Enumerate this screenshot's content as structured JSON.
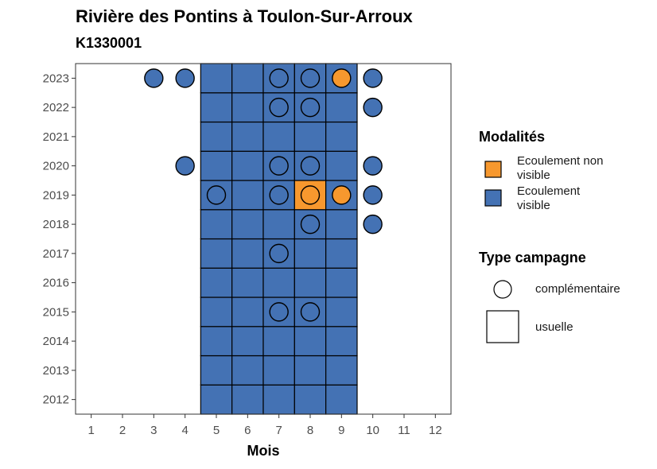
{
  "chart_data": {
    "type": "heatmap",
    "title": "Rivière des Pontins à Toulon-Sur-Arroux",
    "subtitle": "K1330001",
    "xlabel": "Mois",
    "ylabel": "",
    "x_ticks": [
      1,
      2,
      3,
      4,
      5,
      6,
      7,
      8,
      9,
      10,
      11,
      12
    ],
    "y_ticks": [
      2012,
      2013,
      2014,
      2015,
      2016,
      2017,
      2018,
      2019,
      2020,
      2021,
      2022,
      2023
    ],
    "xlim": [
      0.5,
      12.5
    ],
    "ylim": [
      2011.5,
      2023.5
    ],
    "grid": false,
    "legend_placement": "right",
    "colors": {
      "visible": "#4472B4",
      "non_visible": "#F7982E"
    },
    "legend": {
      "modalites_title": "Modalités",
      "modalites": [
        {
          "key": "non_visible",
          "label": "Ecoulement non visible"
        },
        {
          "key": "visible",
          "label": "Ecoulement visible"
        }
      ],
      "campagne_title": "Type campagne",
      "campagnes": [
        {
          "key": "complementaire",
          "label": "complémentaire"
        },
        {
          "key": "usuelle",
          "label": "usuelle"
        }
      ]
    },
    "usuelle": [
      [
        5,
        2012,
        "visible"
      ],
      [
        6,
        2012,
        "visible"
      ],
      [
        7,
        2012,
        "visible"
      ],
      [
        8,
        2012,
        "visible"
      ],
      [
        9,
        2012,
        "visible"
      ],
      [
        5,
        2013,
        "visible"
      ],
      [
        6,
        2013,
        "visible"
      ],
      [
        7,
        2013,
        "visible"
      ],
      [
        8,
        2013,
        "visible"
      ],
      [
        9,
        2013,
        "visible"
      ],
      [
        5,
        2014,
        "visible"
      ],
      [
        6,
        2014,
        "visible"
      ],
      [
        7,
        2014,
        "visible"
      ],
      [
        8,
        2014,
        "visible"
      ],
      [
        9,
        2014,
        "visible"
      ],
      [
        5,
        2015,
        "visible"
      ],
      [
        6,
        2015,
        "visible"
      ],
      [
        7,
        2015,
        "visible"
      ],
      [
        8,
        2015,
        "visible"
      ],
      [
        9,
        2015,
        "visible"
      ],
      [
        5,
        2016,
        "visible"
      ],
      [
        6,
        2016,
        "visible"
      ],
      [
        7,
        2016,
        "visible"
      ],
      [
        8,
        2016,
        "visible"
      ],
      [
        9,
        2016,
        "visible"
      ],
      [
        5,
        2017,
        "visible"
      ],
      [
        6,
        2017,
        "visible"
      ],
      [
        7,
        2017,
        "visible"
      ],
      [
        8,
        2017,
        "visible"
      ],
      [
        9,
        2017,
        "visible"
      ],
      [
        5,
        2018,
        "visible"
      ],
      [
        6,
        2018,
        "visible"
      ],
      [
        7,
        2018,
        "visible"
      ],
      [
        8,
        2018,
        "visible"
      ],
      [
        9,
        2018,
        "visible"
      ],
      [
        5,
        2019,
        "visible"
      ],
      [
        6,
        2019,
        "visible"
      ],
      [
        7,
        2019,
        "visible"
      ],
      [
        8,
        2019,
        "non_visible"
      ],
      [
        9,
        2019,
        "visible"
      ],
      [
        5,
        2020,
        "visible"
      ],
      [
        6,
        2020,
        "visible"
      ],
      [
        7,
        2020,
        "visible"
      ],
      [
        8,
        2020,
        "visible"
      ],
      [
        9,
        2020,
        "visible"
      ],
      [
        5,
        2021,
        "visible"
      ],
      [
        6,
        2021,
        "visible"
      ],
      [
        7,
        2021,
        "visible"
      ],
      [
        8,
        2021,
        "visible"
      ],
      [
        9,
        2021,
        "visible"
      ],
      [
        5,
        2022,
        "visible"
      ],
      [
        6,
        2022,
        "visible"
      ],
      [
        7,
        2022,
        "visible"
      ],
      [
        8,
        2022,
        "visible"
      ],
      [
        9,
        2022,
        "visible"
      ],
      [
        5,
        2023,
        "visible"
      ],
      [
        6,
        2023,
        "visible"
      ],
      [
        7,
        2023,
        "visible"
      ],
      [
        8,
        2023,
        "visible"
      ],
      [
        9,
        2023,
        "visible"
      ]
    ],
    "complementaire": [
      [
        3,
        2023,
        "visible"
      ],
      [
        4,
        2023,
        "visible"
      ],
      [
        7,
        2023,
        "visible"
      ],
      [
        8,
        2023,
        "visible"
      ],
      [
        9,
        2023,
        "non_visible"
      ],
      [
        10,
        2023,
        "visible"
      ],
      [
        7,
        2022,
        "visible"
      ],
      [
        8,
        2022,
        "visible"
      ],
      [
        10,
        2022,
        "visible"
      ],
      [
        4,
        2020,
        "visible"
      ],
      [
        7,
        2020,
        "visible"
      ],
      [
        8,
        2020,
        "visible"
      ],
      [
        10,
        2020,
        "visible"
      ],
      [
        5,
        2019,
        "visible"
      ],
      [
        7,
        2019,
        "visible"
      ],
      [
        8,
        2019,
        "non_visible"
      ],
      [
        9,
        2019,
        "non_visible"
      ],
      [
        10,
        2019,
        "visible"
      ],
      [
        8,
        2018,
        "visible"
      ],
      [
        10,
        2018,
        "visible"
      ],
      [
        7,
        2017,
        "visible"
      ],
      [
        7,
        2015,
        "visible"
      ],
      [
        8,
        2015,
        "visible"
      ]
    ]
  }
}
